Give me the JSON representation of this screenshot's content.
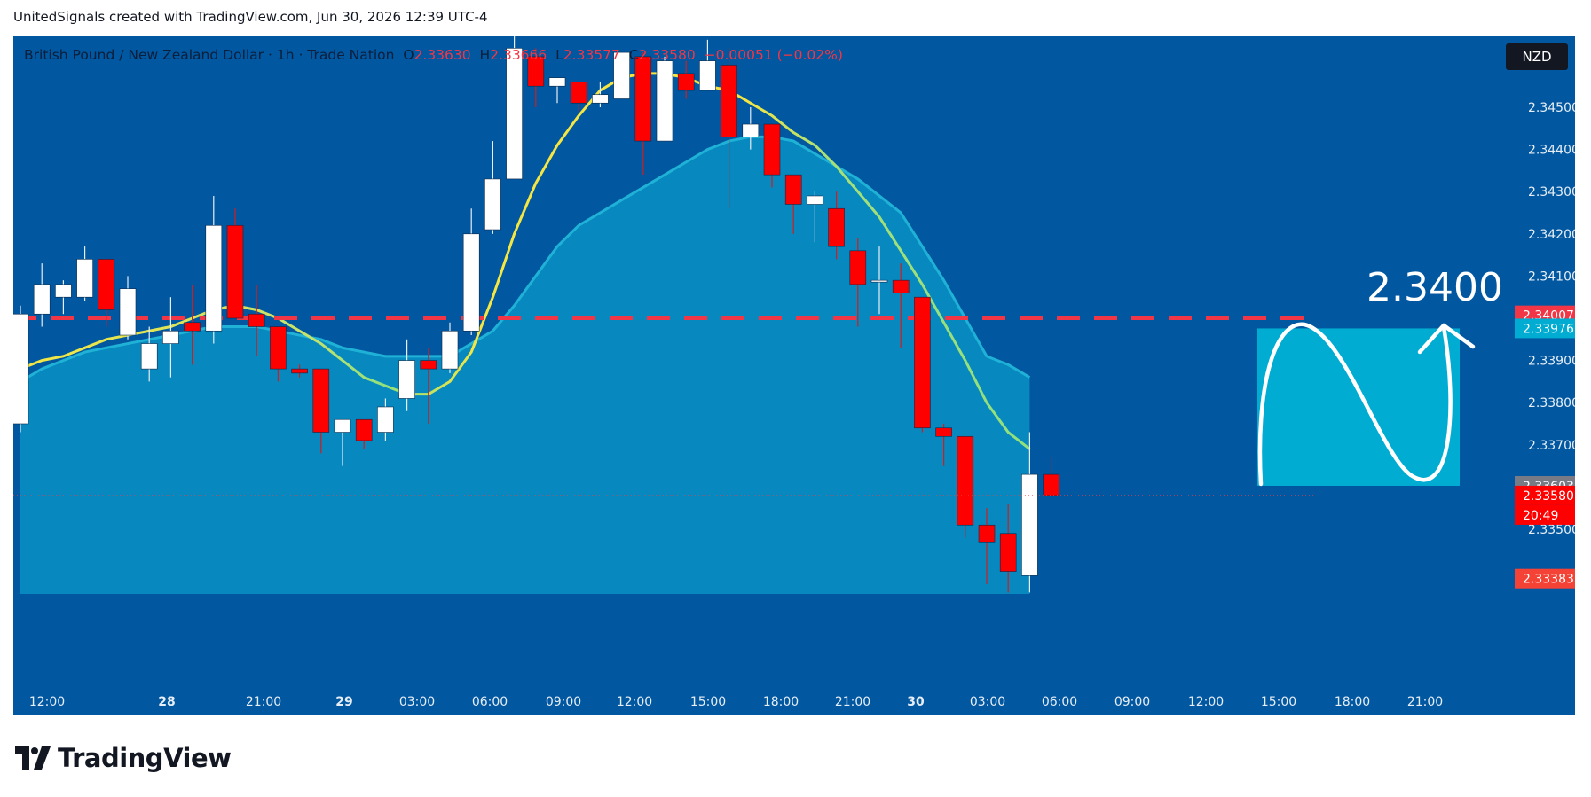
{
  "caption": "UnitedSignals created with TradingView.com, Jun 30, 2026 12:39 UTC-4",
  "header": {
    "symbol": "British Pound / New Zealand Dollar · 1h · Trade Nation",
    "o_label": "O",
    "o_value": "2.33630",
    "h_label": "H",
    "h_value": "2.33666",
    "l_label": "L",
    "l_value": "2.33577",
    "c_label": "C",
    "c_value": "2.33580",
    "change": "−0.00051 (−0.02%)"
  },
  "currency": "NZD",
  "brand": "TradingView",
  "annotation_text": "2.3400",
  "colors": {
    "background": "#0157a0",
    "bull": "#ffffff",
    "bear": "#ff0000",
    "ma_fast": "#f5e642",
    "ma_slow": "#20b2d6",
    "level_line": "#f23645",
    "target_box": "#00acd1",
    "stop_box": "#f44336"
  },
  "chart_data": {
    "type": "candlestick",
    "price_scale_label": "NZD",
    "x_ticks": [
      "12:00",
      "28",
      "21:00",
      "29",
      "03:00",
      "06:00",
      "09:00",
      "12:00",
      "15:00",
      "18:00",
      "21:00",
      "30",
      "03:00",
      "06:00",
      "09:00",
      "12:00",
      "15:00",
      "18:00",
      "21:00"
    ],
    "y_ticks": [
      "2.34500",
      "2.34400",
      "2.34300",
      "2.34200",
      "2.34100",
      "2.33900",
      "2.33800",
      "2.33700",
      "2.33500"
    ],
    "price_labels": [
      {
        "text": "2.34007",
        "value": 2.34007,
        "color": "#f23645"
      },
      {
        "text": "2.33976",
        "value": 2.33976,
        "color": "#00acd1"
      },
      {
        "text": "2.33603",
        "value": 2.33603,
        "color": "#787b86"
      },
      {
        "text": "2.33580",
        "value": 2.3358,
        "color": "#ff0000"
      },
      {
        "text": "20:49",
        "value": null,
        "color": "#ff0000"
      },
      {
        "text": "2.33383",
        "value": 2.33383,
        "color": "#f44336"
      }
    ],
    "horizontal_level": 2.34,
    "candles": [
      {
        "o": 2.3375,
        "h": 2.3403,
        "l": 2.3373,
        "c": 2.3401
      },
      {
        "o": 2.3401,
        "h": 2.3413,
        "l": 2.3398,
        "c": 2.3408
      },
      {
        "o": 2.3405,
        "h": 2.3409,
        "l": 2.3401,
        "c": 2.3408
      },
      {
        "o": 2.3405,
        "h": 2.3417,
        "l": 2.3404,
        "c": 2.3414
      },
      {
        "o": 2.3414,
        "h": 2.3414,
        "l": 2.3398,
        "c": 2.3402
      },
      {
        "o": 2.3396,
        "h": 2.341,
        "l": 2.3395,
        "c": 2.3407
      },
      {
        "o": 2.3388,
        "h": 2.3398,
        "l": 2.3385,
        "c": 2.3394
      },
      {
        "o": 2.3394,
        "h": 2.3405,
        "l": 2.3386,
        "c": 2.3397
      },
      {
        "o": 2.3399,
        "h": 2.3408,
        "l": 2.3389,
        "c": 2.3397
      },
      {
        "o": 2.3397,
        "h": 2.3429,
        "l": 2.3394,
        "c": 2.3422
      },
      {
        "o": 2.3422,
        "h": 2.3426,
        "l": 2.34,
        "c": 2.34
      },
      {
        "o": 2.3401,
        "h": 2.3408,
        "l": 2.3391,
        "c": 2.3398
      },
      {
        "o": 2.3398,
        "h": 2.3398,
        "l": 2.3385,
        "c": 2.3388
      },
      {
        "o": 2.3388,
        "h": 2.3389,
        "l": 2.3386,
        "c": 2.3387
      },
      {
        "o": 2.3388,
        "h": 2.3388,
        "l": 2.3368,
        "c": 2.3373
      },
      {
        "o": 2.3373,
        "h": 2.3376,
        "l": 2.3365,
        "c": 2.3376
      },
      {
        "o": 2.3376,
        "h": 2.3376,
        "l": 2.3369,
        "c": 2.3371
      },
      {
        "o": 2.3373,
        "h": 2.3381,
        "l": 2.3371,
        "c": 2.3379
      },
      {
        "o": 2.3381,
        "h": 2.3395,
        "l": 2.3378,
        "c": 2.339
      },
      {
        "o": 2.339,
        "h": 2.3393,
        "l": 2.3375,
        "c": 2.3388
      },
      {
        "o": 2.3388,
        "h": 2.3399,
        "l": 2.3387,
        "c": 2.3397
      },
      {
        "o": 2.3397,
        "h": 2.3426,
        "l": 2.3396,
        "c": 2.342
      },
      {
        "o": 2.3421,
        "h": 2.3442,
        "l": 2.342,
        "c": 2.3433
      },
      {
        "o": 2.3433,
        "h": 2.3471,
        "l": 2.3433,
        "c": 2.3464
      },
      {
        "o": 2.3462,
        "h": 2.3464,
        "l": 2.345,
        "c": 2.3455
      },
      {
        "o": 2.3455,
        "h": 2.3457,
        "l": 2.3451,
        "c": 2.3457
      },
      {
        "o": 2.3456,
        "h": 2.3456,
        "l": 2.3449,
        "c": 2.3451
      },
      {
        "o": 2.3451,
        "h": 2.3456,
        "l": 2.345,
        "c": 2.3453
      },
      {
        "o": 2.3452,
        "h": 2.3463,
        "l": 2.3452,
        "c": 2.3463
      },
      {
        "o": 2.3462,
        "h": 2.3463,
        "l": 2.3434,
        "c": 2.3442
      },
      {
        "o": 2.3442,
        "h": 2.3462,
        "l": 2.3442,
        "c": 2.3461
      },
      {
        "o": 2.3458,
        "h": 2.3461,
        "l": 2.3452,
        "c": 2.3454
      },
      {
        "o": 2.3454,
        "h": 2.3466,
        "l": 2.3455,
        "c": 2.3461
      },
      {
        "o": 2.346,
        "h": 2.3464,
        "l": 2.3426,
        "c": 2.3443
      },
      {
        "o": 2.3443,
        "h": 2.345,
        "l": 2.344,
        "c": 2.3446
      },
      {
        "o": 2.3446,
        "h": 2.3445,
        "l": 2.3431,
        "c": 2.3434
      },
      {
        "o": 2.3434,
        "h": 2.3434,
        "l": 2.342,
        "c": 2.3427
      },
      {
        "o": 2.3427,
        "h": 2.343,
        "l": 2.3418,
        "c": 2.3429
      },
      {
        "o": 2.3426,
        "h": 2.343,
        "l": 2.3414,
        "c": 2.3417
      },
      {
        "o": 2.3416,
        "h": 2.3419,
        "l": 2.3398,
        "c": 2.3408
      },
      {
        "o": 2.3409,
        "h": 2.3417,
        "l": 2.3401,
        "c": 2.3409
      },
      {
        "o": 2.3409,
        "h": 2.3413,
        "l": 2.3393,
        "c": 2.3406
      },
      {
        "o": 2.3405,
        "h": 2.3405,
        "l": 2.3373,
        "c": 2.3374
      },
      {
        "o": 2.3374,
        "h": 2.3375,
        "l": 2.3365,
        "c": 2.3372
      },
      {
        "o": 2.3372,
        "h": 2.3372,
        "l": 2.3348,
        "c": 2.3351
      },
      {
        "o": 2.3351,
        "h": 2.3355,
        "l": 2.3337,
        "c": 2.3347
      },
      {
        "o": 2.3349,
        "h": 2.3356,
        "l": 2.3335,
        "c": 2.334
      },
      {
        "o": 2.3339,
        "h": 2.3373,
        "l": 2.3335,
        "c": 2.3363
      },
      {
        "o": 2.3363,
        "h": 2.3367,
        "l": 2.3358,
        "c": 2.3358
      }
    ],
    "ma_fast": [
      2.3388,
      2.339,
      2.3391,
      2.3393,
      2.3395,
      2.3396,
      2.3397,
      2.3398,
      2.34,
      2.3402,
      2.3403,
      2.3402,
      2.34,
      2.3397,
      2.3394,
      2.339,
      2.3386,
      2.3384,
      2.3382,
      2.3382,
      2.3385,
      2.3392,
      2.3405,
      2.342,
      2.3432,
      2.3441,
      2.3448,
      2.3454,
      2.3457,
      2.3458,
      2.3458,
      2.3457,
      2.3455,
      2.3454,
      2.3451,
      2.3448,
      2.3444,
      2.3441,
      2.3436,
      2.343,
      2.3424,
      2.3416,
      2.3408,
      2.3399,
      2.339,
      2.338,
      2.3373,
      2.3369
    ],
    "ma_slow": [
      2.3385,
      2.3388,
      2.339,
      2.3392,
      2.3393,
      2.3394,
      2.3395,
      2.3396,
      2.3397,
      2.3398,
      2.3398,
      2.3398,
      2.3397,
      2.3396,
      2.3395,
      2.3393,
      2.3392,
      2.3391,
      2.3391,
      2.3391,
      2.3391,
      2.3394,
      2.3397,
      2.3403,
      2.341,
      2.3417,
      2.3422,
      2.3425,
      2.3428,
      2.3431,
      2.3434,
      2.3437,
      2.344,
      2.3442,
      2.3443,
      2.3443,
      2.3442,
      2.3439,
      2.3436,
      2.3433,
      2.3429,
      2.3425,
      2.3417,
      2.3409,
      2.34,
      2.3391,
      2.3389,
      2.3386
    ],
    "target_box": {
      "from": 2.33603,
      "to": 2.33976
    },
    "stop_box": {
      "from": 2.33383,
      "to": 2.33603
    }
  }
}
